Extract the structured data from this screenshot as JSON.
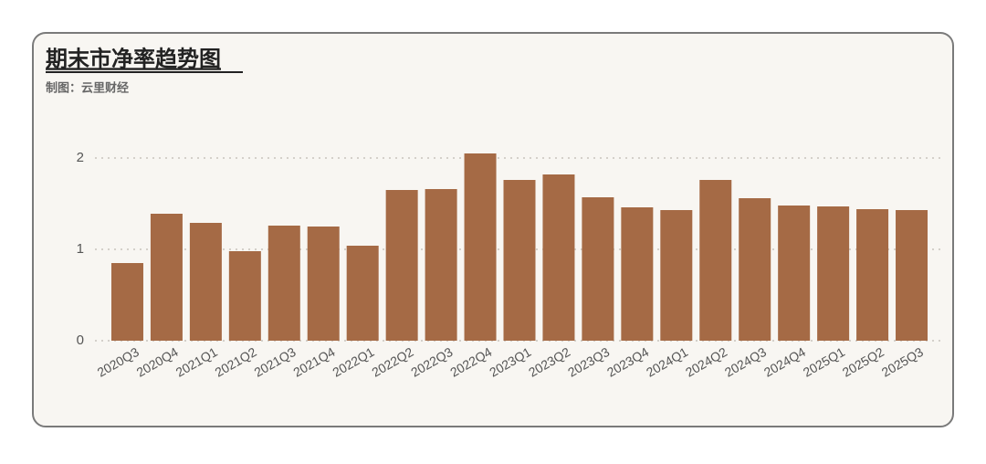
{
  "chart_data": {
    "type": "bar",
    "title": "期末市净率趋势图",
    "subtitle": "制图：云里财经",
    "categories": [
      "2020Q3",
      "2020Q4",
      "2021Q1",
      "2021Q2",
      "2021Q3",
      "2021Q4",
      "2022Q1",
      "2022Q2",
      "2022Q3",
      "2022Q4",
      "2023Q1",
      "2023Q2",
      "2023Q3",
      "2023Q4",
      "2024Q1",
      "2024Q2",
      "2024Q3",
      "2024Q4",
      "2025Q1",
      "2025Q2",
      "2025Q3"
    ],
    "values": [
      0.85,
      1.39,
      1.29,
      0.98,
      1.26,
      1.25,
      1.04,
      1.65,
      1.66,
      2.05,
      1.76,
      1.82,
      1.57,
      1.46,
      1.43,
      1.76,
      1.56,
      1.48,
      1.47,
      1.44,
      1.43
    ],
    "color": "#a56a45",
    "ylim": [
      0,
      2.2
    ],
    "yticks": [
      0,
      1,
      2
    ],
    "grid": true
  }
}
